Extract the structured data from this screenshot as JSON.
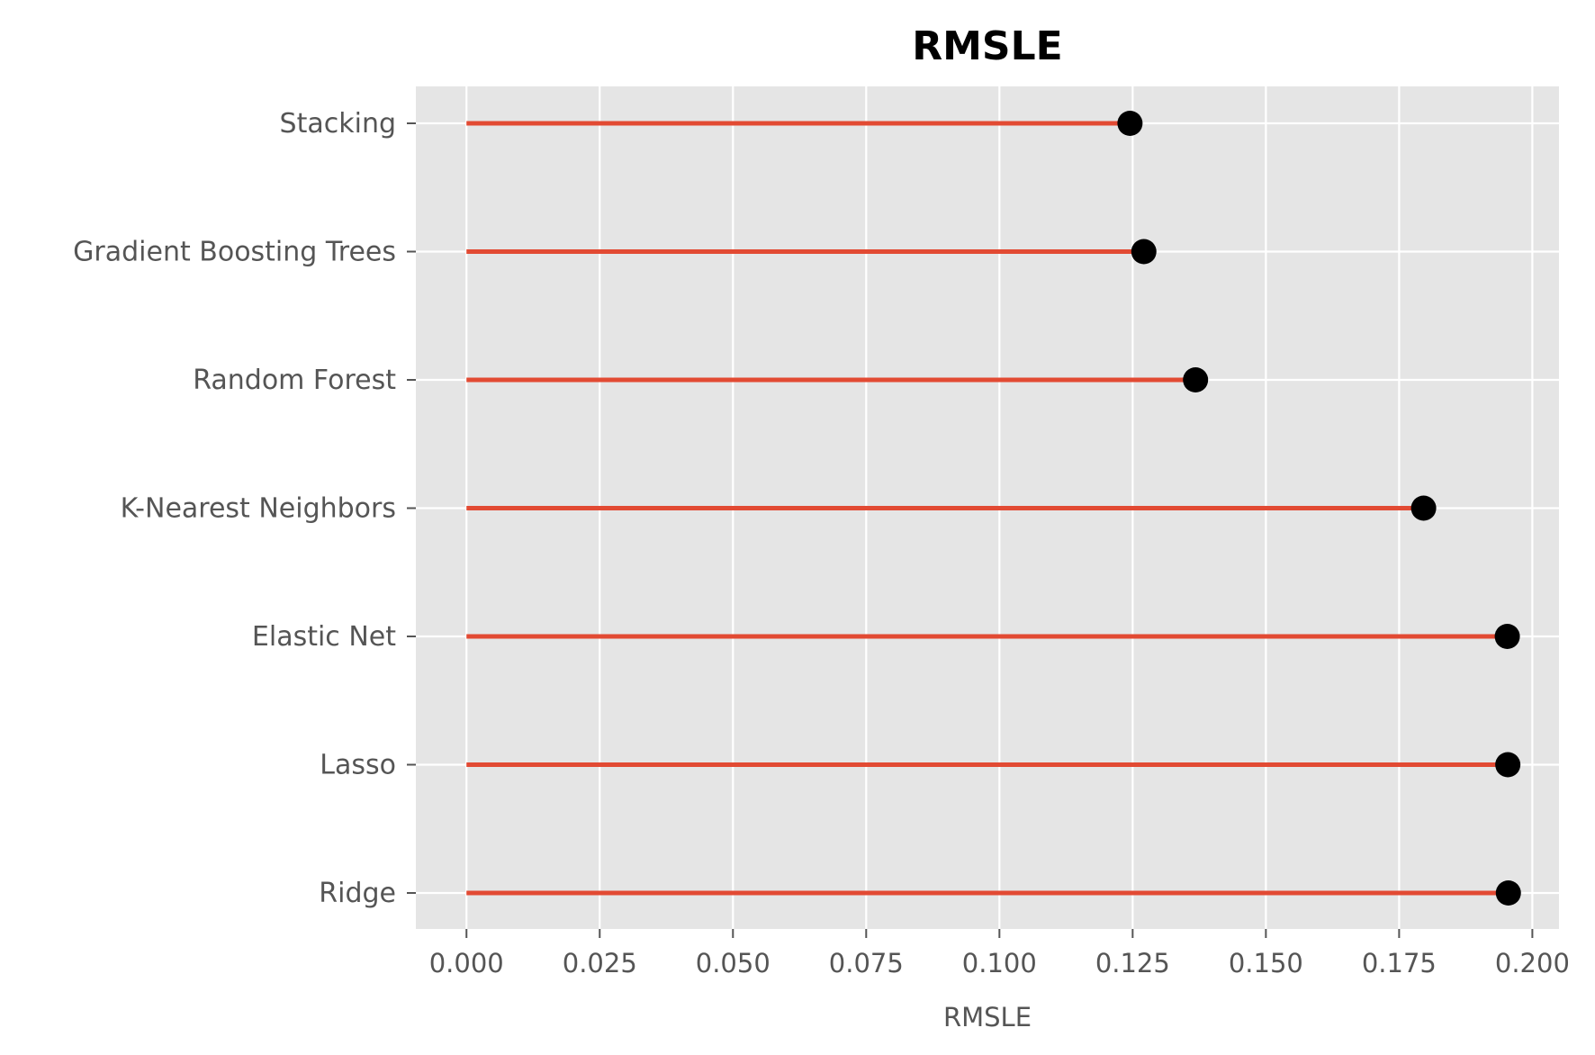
{
  "chart_data": {
    "type": "lollipop",
    "title": "RMSLE",
    "xlabel": "RMSLE",
    "ylabel": "",
    "categories": [
      "Stacking",
      "Gradient Boosting Trees",
      "Random Forest",
      "K-Nearest Neighbors",
      "Elastic Net",
      "Lasso",
      "Ridge"
    ],
    "values": [
      0.1245,
      0.1271,
      0.1368,
      0.1796,
      0.1953,
      0.1954,
      0.1955
    ],
    "xlim": [
      -0.0095,
      0.205
    ],
    "xticks": [
      0.0,
      0.025,
      0.05,
      0.075,
      0.1,
      0.125,
      0.15,
      0.175,
      0.2
    ],
    "xtick_labels": [
      "0.000",
      "0.025",
      "0.050",
      "0.075",
      "0.100",
      "0.125",
      "0.150",
      "0.175",
      "0.200"
    ],
    "grid": true,
    "colors": {
      "background": "#e5e5e5",
      "grid": "#ffffff",
      "stem": "#e24a33",
      "marker": "#000000",
      "text": "#555555",
      "title": "#000000"
    }
  }
}
